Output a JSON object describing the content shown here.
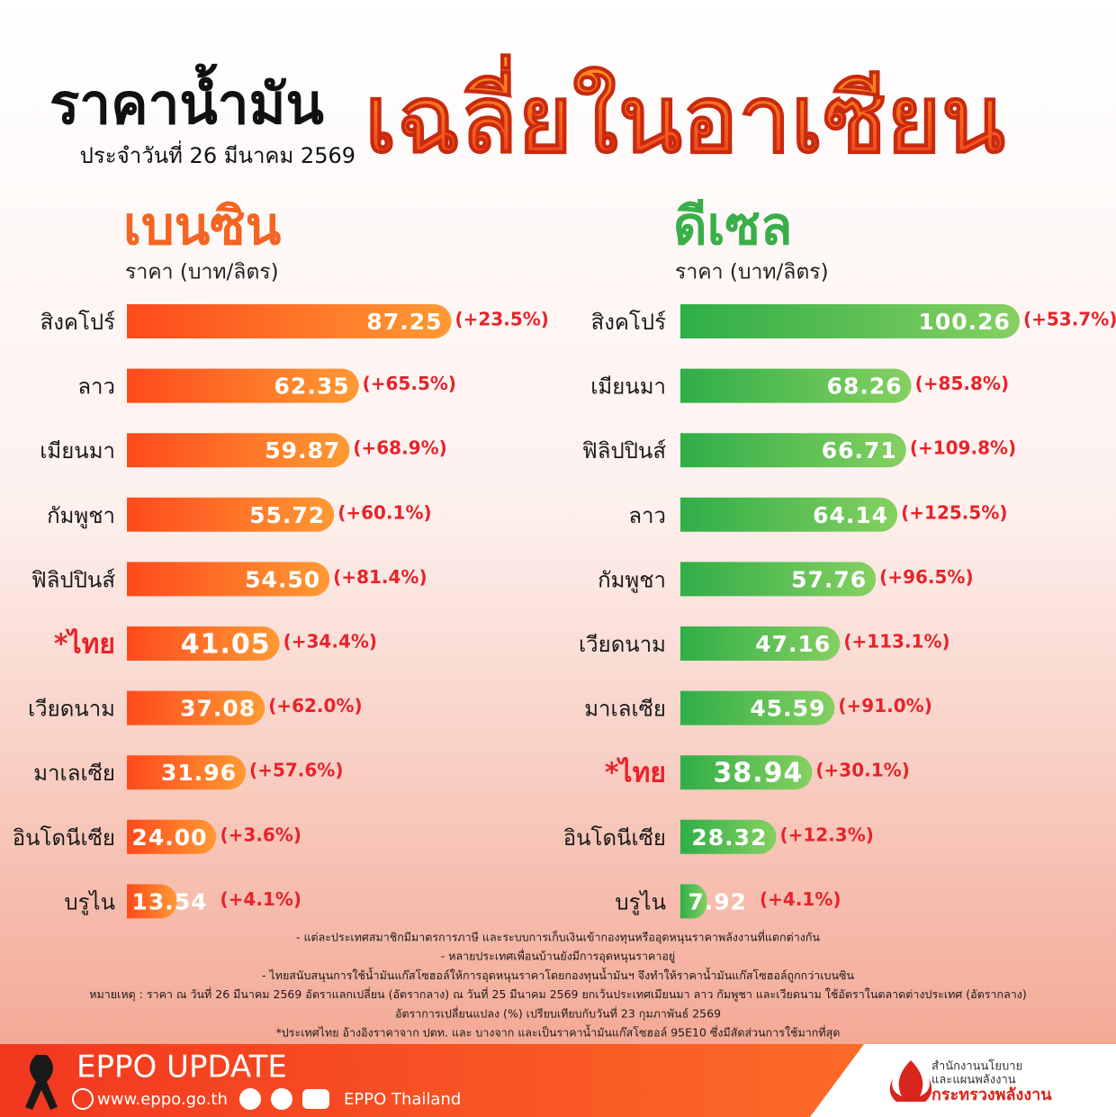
{
  "header": {
    "title": "ราคาน้ำมัน",
    "title_highlight": "เฉลี่ยในอาเซียน",
    "date": "ประจำวันที่ 26 มีนาคม 2569"
  },
  "chart_data": [
    {
      "type": "bar",
      "orientation": "horizontal",
      "title": "เบนซิน",
      "subtitle": "ราคา (บาท/ลิตร)",
      "title_color": "#f26522",
      "colors": [
        "#ff4a1c",
        "#ff9a33"
      ],
      "highlight_index": 5,
      "xlim": [
        0,
        91
      ],
      "categories": [
        "สิงคโปร์",
        "ลาว",
        "เมียนมา",
        "กัมพูชา",
        "ฟิลิปปินส์",
        "*ไทย",
        "เวียดนาม",
        "มาเลเซีย",
        "อินโดนีเซีย",
        "บรูไน"
      ],
      "values": [
        87.25,
        62.35,
        59.87,
        55.72,
        54.5,
        41.05,
        37.08,
        31.96,
        24.0,
        13.54
      ],
      "value_labels": [
        "87.25",
        "62.35",
        "59.87",
        "55.72",
        "54.50",
        "41.05",
        "37.08",
        "31.96",
        "24.00",
        "13.54"
      ],
      "change_labels": [
        "(+23.5%)",
        "(+65.5%)",
        "(+68.9%)",
        "(+60.1%)",
        "(+81.4%)",
        "(+34.4%)",
        "(+62.0%)",
        "(+57.6%)",
        "(+3.6%)",
        "(+4.1%)"
      ]
    },
    {
      "type": "bar",
      "orientation": "horizontal",
      "title": "ดีเซล",
      "subtitle": "ราคา (บาท/ลิตร)",
      "title_color": "#3aae49",
      "colors": [
        "#2fae47",
        "#86d061"
      ],
      "highlight_index": 7,
      "xlim": [
        0,
        100
      ],
      "categories": [
        "สิงคโปร์",
        "เมียนมา",
        "ฟิลิปปินส์",
        "ลาว",
        "กัมพูชา",
        "เวียดนาม",
        "มาเลเซีย",
        "*ไทย",
        "อินโดนีเซีย",
        "บรูไน"
      ],
      "values": [
        100.26,
        68.26,
        66.71,
        64.14,
        57.76,
        47.16,
        45.59,
        38.94,
        28.32,
        7.92
      ],
      "value_labels": [
        "100.26",
        "68.26",
        "66.71",
        "64.14",
        "57.76",
        "47.16",
        "45.59",
        "38.94",
        "28.32",
        "7.92"
      ],
      "change_labels": [
        "(+53.7%)",
        "(+85.8%)",
        "(+109.8%)",
        "(+125.5%)",
        "(+96.5%)",
        "(+113.1%)",
        "(+91.0%)",
        "(+30.1%)",
        "(+12.3%)",
        "(+4.1%)"
      ]
    }
  ],
  "notes": [
    "- แต่ละประเทศสมาชิกมีมาตรการภาษี และระบบการเก็บเงินเข้ากองทุนหรืออุดหนุนราคาพลังงานที่แตกต่างกัน",
    "- หลายประเทศเพื่อนบ้านยังมีการอุดหนุนราคาอยู่",
    "- ไทยสนับสนุนการใช้น้ำมันแก๊สโซฮอล์ให้การอุดหนุนราคาโดยกองทุนน้ำมันฯ จึงทำให้ราคาน้ำมันแก๊สโซฮอล์ถูกกว่าเบนซิน",
    "หมายเหตุ : ราคา  ณ วันที่ 26 มีนาคม 2569 อัตราแลกเปลี่ยน (อัตรากลาง) ณ วันที่ 25 มีนาคม 2569 ยกเว้นประเทศเมียนมา ลาว กัมพูชา และเวียดนาม ใช้อัตราในตลาดต่างประเทศ (อัตรากลาง)",
    "อัตราการเปลี่ยนแปลง (%) เปรียบเทียบกับวันที่ 23 กุมภาพันธ์ 2569",
    "*ประเทศไทย อ้างอิงราคาจาก ปตท. และ บางจาก และเป็นราคาน้ำมันแก๊สโซฮอล์ 95E10 ซึ่งมีสัดส่วนการใช้มากที่สุด"
  ],
  "footer": {
    "title": "EPPO UPDATE",
    "website": "www.eppo.go.th",
    "social": "EPPO Thailand",
    "org": [
      "สำนักงานนโยบาย",
      "และแผนพลังงาน",
      "กระทรวงพลังงาน"
    ]
  }
}
